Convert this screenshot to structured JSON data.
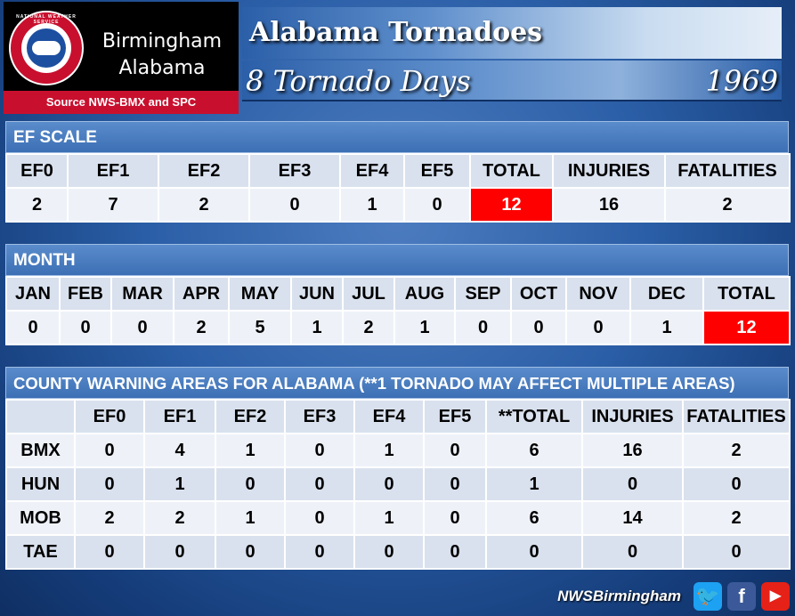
{
  "logo": {
    "seal_text": "NATIONAL WEATHER SERVICE",
    "city_line1": "Birmingham",
    "city_line2": "Alabama",
    "source": "Source NWS-BMX and SPC"
  },
  "title": {
    "main": "Alabama Tornadoes",
    "subtitle": "8 Tornado Days",
    "year": "1969"
  },
  "ef_scale": {
    "header": "EF SCALE",
    "columns": [
      "EF0",
      "EF1",
      "EF2",
      "EF3",
      "EF4",
      "EF5",
      "TOTAL",
      "INJURIES",
      "FATALITIES"
    ],
    "values": [
      "2",
      "7",
      "2",
      "0",
      "1",
      "0",
      "12",
      "16",
      "2"
    ]
  },
  "month": {
    "header": "MONTH",
    "columns": [
      "JAN",
      "FEB",
      "MAR",
      "APR",
      "MAY",
      "JUN",
      "JUL",
      "AUG",
      "SEP",
      "OCT",
      "NOV",
      "DEC",
      "TOTAL"
    ],
    "values": [
      "0",
      "0",
      "0",
      "2",
      "5",
      "1",
      "2",
      "1",
      "0",
      "0",
      "0",
      "1",
      "12"
    ]
  },
  "cwa": {
    "header": "COUNTY WARNING AREAS FOR ALABAMA (**1 TORNADO MAY AFFECT MULTIPLE AREAS)",
    "columns": [
      "",
      "EF0",
      "EF1",
      "EF2",
      "EF3",
      "EF4",
      "EF5",
      "**TOTAL",
      "INJURIES",
      "FATALITIES"
    ],
    "rows": [
      [
        "BMX",
        "0",
        "4",
        "1",
        "0",
        "1",
        "0",
        "6",
        "16",
        "2"
      ],
      [
        "HUN",
        "0",
        "1",
        "0",
        "0",
        "0",
        "0",
        "1",
        "0",
        "0"
      ],
      [
        "MOB",
        "2",
        "2",
        "1",
        "0",
        "1",
        "0",
        "6",
        "14",
        "2"
      ],
      [
        "TAE",
        "0",
        "0",
        "0",
        "0",
        "0",
        "0",
        "0",
        "0",
        "0"
      ]
    ]
  },
  "footer": {
    "handle": "NWSBirmingham",
    "icons": [
      "twitter-icon",
      "facebook-icon",
      "youtube-icon"
    ]
  },
  "colors": {
    "highlight": "#ff0000",
    "header_blue": "#3c6fb4",
    "logo_red": "#c8102e"
  }
}
